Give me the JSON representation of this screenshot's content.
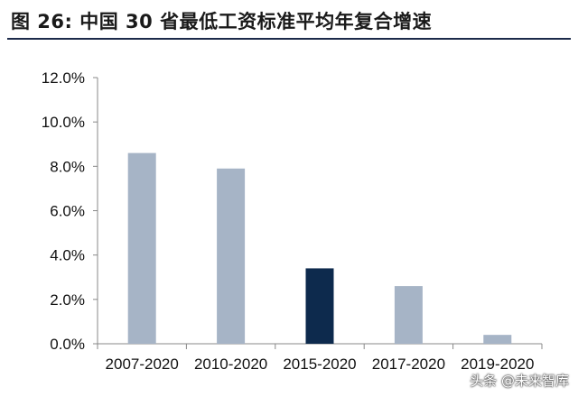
{
  "figure": {
    "title": "图 26:  中国 30 省最低工资标准平均年复合增速"
  },
  "watermark": "头条 @未来智库",
  "chart_data": {
    "type": "bar",
    "title": "",
    "xlabel": "",
    "ylabel": "",
    "categories": [
      "2007-2020",
      "2010-2020",
      "2015-2020",
      "2017-2020",
      "2019-2020"
    ],
    "values": [
      8.6,
      7.9,
      3.4,
      2.6,
      0.4
    ],
    "highlight_index": 2,
    "ylim": [
      0,
      12
    ],
    "yticks": [
      0,
      2,
      4,
      6,
      8,
      10,
      12
    ],
    "ytick_labels": [
      "0.0%",
      "2.0%",
      "4.0%",
      "6.0%",
      "8.0%",
      "10.0%",
      "12.0%"
    ],
    "grid": false,
    "colors": {
      "bar": "#a6b4c6",
      "highlight": "#0d2a4d",
      "axis": "#888888"
    }
  }
}
